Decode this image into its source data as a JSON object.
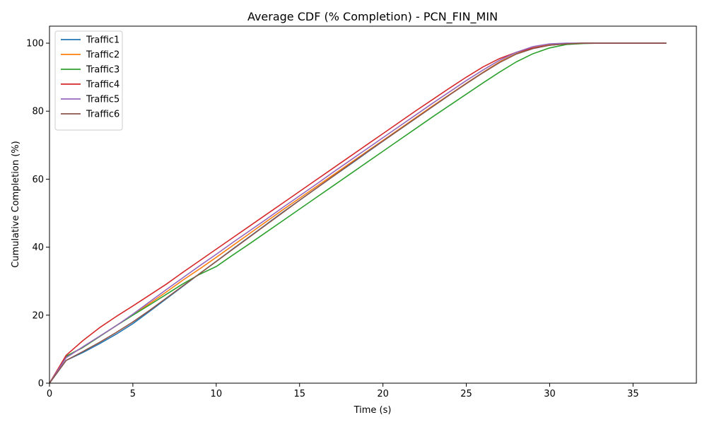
{
  "chart_data": {
    "type": "line",
    "title": "Average CDF (% Completion) - PCN_FIN_MIN",
    "xlabel": "Time (s)",
    "ylabel": "Cumulative Completion (%)",
    "xlim": [
      0,
      38.8
    ],
    "ylim": [
      0,
      105
    ],
    "xticks": [
      0,
      5,
      10,
      15,
      20,
      25,
      30,
      35
    ],
    "yticks": [
      0,
      20,
      40,
      60,
      80,
      100
    ],
    "grid": false,
    "legend_position": "top-left",
    "x": [
      0,
      1,
      2,
      3,
      4,
      5,
      6,
      7,
      8,
      9,
      10,
      11,
      12,
      13,
      14,
      15,
      16,
      17,
      18,
      19,
      20,
      21,
      22,
      23,
      24,
      25,
      26,
      27,
      28,
      29,
      30,
      31,
      32,
      33,
      34,
      35,
      36,
      37
    ],
    "series": [
      {
        "name": "Traffic1",
        "color": "#1f77b4",
        "values": [
          0,
          6.7,
          9.0,
          11.6,
          14.4,
          17.5,
          21.1,
          24.8,
          28.5,
          32.2,
          35.8,
          39.5,
          43.1,
          46.7,
          50.3,
          53.8,
          57.3,
          60.8,
          64.2,
          67.7,
          71.2,
          74.6,
          78.0,
          81.4,
          84.8,
          88.2,
          91.4,
          94.5,
          96.9,
          98.6,
          99.6,
          99.9,
          100,
          100,
          100,
          100,
          100,
          100
        ]
      },
      {
        "name": "Traffic2",
        "color": "#ff7f0e",
        "values": [
          0,
          7.9,
          10.5,
          13.7,
          16.9,
          20.1,
          23.4,
          26.8,
          30.3,
          33.6,
          37.0,
          40.5,
          44.0,
          47.5,
          51.0,
          54.4,
          57.8,
          61.2,
          64.6,
          68.0,
          71.4,
          74.8,
          78.2,
          81.6,
          84.9,
          88.2,
          91.4,
          94.5,
          96.9,
          98.6,
          99.6,
          99.9,
          100,
          100,
          100,
          100,
          100,
          100
        ]
      },
      {
        "name": "Traffic3",
        "color": "#2ca02c",
        "values": [
          0,
          7.9,
          10.5,
          13.7,
          16.9,
          20.0,
          23.0,
          26.1,
          29.2,
          32.0,
          34.3,
          37.7,
          41.0,
          44.4,
          47.8,
          51.2,
          54.6,
          58.0,
          61.4,
          64.8,
          68.2,
          71.6,
          75.0,
          78.4,
          81.7,
          85.0,
          88.3,
          91.5,
          94.5,
          96.9,
          98.6,
          99.6,
          99.9,
          100,
          100,
          100,
          100,
          100
        ]
      },
      {
        "name": "Traffic4",
        "color": "#d62728",
        "values": [
          0,
          8.2,
          12.5,
          16.3,
          19.6,
          22.7,
          25.9,
          29.1,
          32.6,
          36.0,
          39.4,
          42.8,
          46.2,
          49.6,
          53.0,
          56.4,
          59.8,
          63.2,
          66.6,
          70.0,
          73.4,
          76.8,
          80.2,
          83.5,
          86.8,
          90.0,
          93.0,
          95.5,
          97.3,
          98.6,
          99.4,
          99.8,
          100,
          100,
          100,
          100,
          100,
          100
        ]
      },
      {
        "name": "Traffic5",
        "color": "#9467bd",
        "values": [
          0,
          7.5,
          10.7,
          13.8,
          16.9,
          20.3,
          23.9,
          27.5,
          31.0,
          34.5,
          37.9,
          41.4,
          44.8,
          48.2,
          51.7,
          55.1,
          58.5,
          62.0,
          65.4,
          68.8,
          72.2,
          75.6,
          79.0,
          82.4,
          85.7,
          89.0,
          92.1,
          95.0,
          97.3,
          99.0,
          99.8,
          100,
          100,
          100,
          100,
          100,
          100,
          100
        ]
      },
      {
        "name": "Traffic6",
        "color": "#8c564b",
        "values": [
          0,
          6.7,
          9.3,
          12.0,
          14.9,
          18.0,
          21.4,
          25.0,
          28.6,
          32.2,
          35.8,
          39.4,
          43.0,
          46.6,
          50.2,
          53.8,
          57.3,
          60.8,
          64.3,
          67.8,
          71.2,
          74.6,
          78.0,
          81.4,
          84.8,
          88.1,
          91.3,
          94.3,
          96.8,
          98.4,
          99.4,
          99.8,
          100,
          100,
          100,
          100,
          100,
          100
        ]
      }
    ]
  }
}
